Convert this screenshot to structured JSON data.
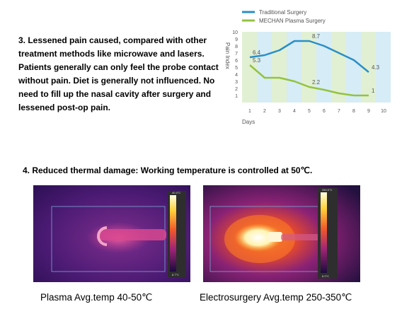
{
  "section3": {
    "text": "3. Lessened pain caused, compared with other treatment methods like microwave and lasers. Patients generally can only feel the probe contact without pain. Diet is generally not influenced. No need to fill up the nasal cavity after surgery and lessened post-op pain."
  },
  "section4": {
    "text": "4. Reduced thermal damage: Working temperature is controlled at 50℃."
  },
  "captions": {
    "plasma": "Plasma Avg.temp 40-50℃",
    "electro": "Electrosurgery Avg.temp 250-350℃"
  },
  "colors": {
    "traditional": "#2b8fc6",
    "plasma": "#93c340",
    "stripe_green": "#e1f0d3",
    "stripe_blue": "#d6ecf6"
  },
  "chart_data": {
    "type": "line",
    "ylabel": "Pain Index",
    "xlabel": "Days",
    "xlim": [
      0,
      10
    ],
    "ylim": [
      0,
      10
    ],
    "x_ticks": [
      "1",
      "2",
      "3",
      "4",
      "5",
      "6",
      "7",
      "8",
      "9",
      "10"
    ],
    "y_ticks": [
      "1",
      "2",
      "3",
      "4",
      "5",
      "6",
      "7",
      "8",
      "9",
      "10"
    ],
    "legend_position": "top-left",
    "series": [
      {
        "name": "Traditional Surgery",
        "x": [
          1,
          2,
          3,
          4,
          5,
          6,
          7,
          8,
          9
        ],
        "values": [
          6.4,
          6.7,
          7.4,
          8.7,
          8.7,
          8.0,
          7.0,
          6.0,
          4.3
        ],
        "labels": [
          {
            "x": 1,
            "y": 6.4,
            "text": "6.4"
          },
          {
            "x": 5,
            "y": 8.7,
            "text": "8.7"
          },
          {
            "x": 9,
            "y": 4.3,
            "text": "4.3"
          }
        ]
      },
      {
        "name": "MECHAN Plasma Surgery",
        "x": [
          1,
          2,
          3,
          4,
          5,
          6,
          7,
          8,
          9
        ],
        "values": [
          5.3,
          3.5,
          3.5,
          3.0,
          2.2,
          1.8,
          1.3,
          1.0,
          1.0
        ],
        "labels": [
          {
            "x": 1,
            "y": 5.3,
            "text": "5.3"
          },
          {
            "x": 5,
            "y": 2.2,
            "text": "2.2"
          },
          {
            "x": 9,
            "y": 1.0,
            "text": "1"
          }
        ]
      }
    ]
  },
  "thermal_images": {
    "plasma": {
      "scale_top": "40.4°C",
      "scale_bottom": "8.7°C"
    },
    "electro": {
      "scale_top": "250.0°C",
      "scale_bottom": "8.0°C"
    }
  }
}
